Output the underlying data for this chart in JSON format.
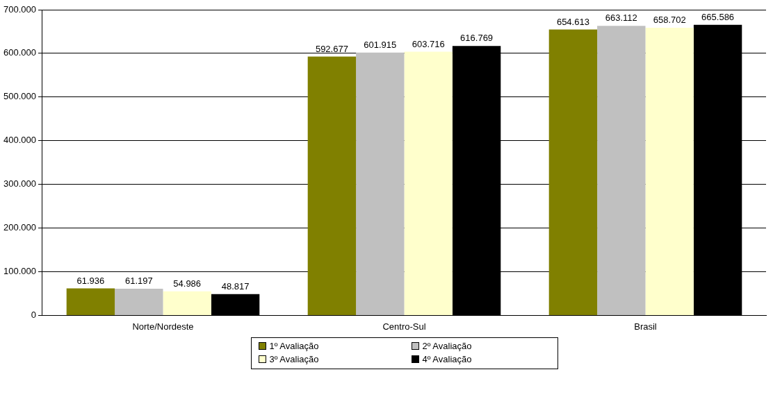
{
  "chart_data": {
    "type": "bar",
    "categories": [
      "Norte/Nordeste",
      "Centro-Sul",
      "Brasil"
    ],
    "series": [
      {
        "name": "1º Avaliação",
        "color": "#808000",
        "values": [
          61936,
          592677,
          654613
        ],
        "value_labels": [
          "61.936",
          "592.677",
          "654.613"
        ]
      },
      {
        "name": "2º Avaliação",
        "color": "#c0c0c0",
        "values": [
          61197,
          601915,
          663112
        ],
        "value_labels": [
          "61.197",
          "601.915",
          "663.112"
        ]
      },
      {
        "name": "3º Avaliação",
        "color": "#ffffcc",
        "values": [
          54986,
          603716,
          658702
        ],
        "value_labels": [
          "54.986",
          "603.716",
          "658.702"
        ]
      },
      {
        "name": "4º Avaliação",
        "color": "#000000",
        "values": [
          48817,
          616769,
          665586
        ],
        "value_labels": [
          "48.817",
          "616.769",
          "665.586"
        ]
      }
    ],
    "ylim": [
      0,
      700000
    ],
    "yticks": [
      {
        "value": 0,
        "label": "0"
      },
      {
        "value": 100000,
        "label": "100.000"
      },
      {
        "value": 200000,
        "label": "200.000"
      },
      {
        "value": 300000,
        "label": "300.000"
      },
      {
        "value": 400000,
        "label": "400.000"
      },
      {
        "value": 500000,
        "label": "500.000"
      },
      {
        "value": 600000,
        "label": "600.000"
      },
      {
        "value": 700000,
        "label": "700.000"
      }
    ],
    "grid": "y",
    "legend": "bottom"
  }
}
